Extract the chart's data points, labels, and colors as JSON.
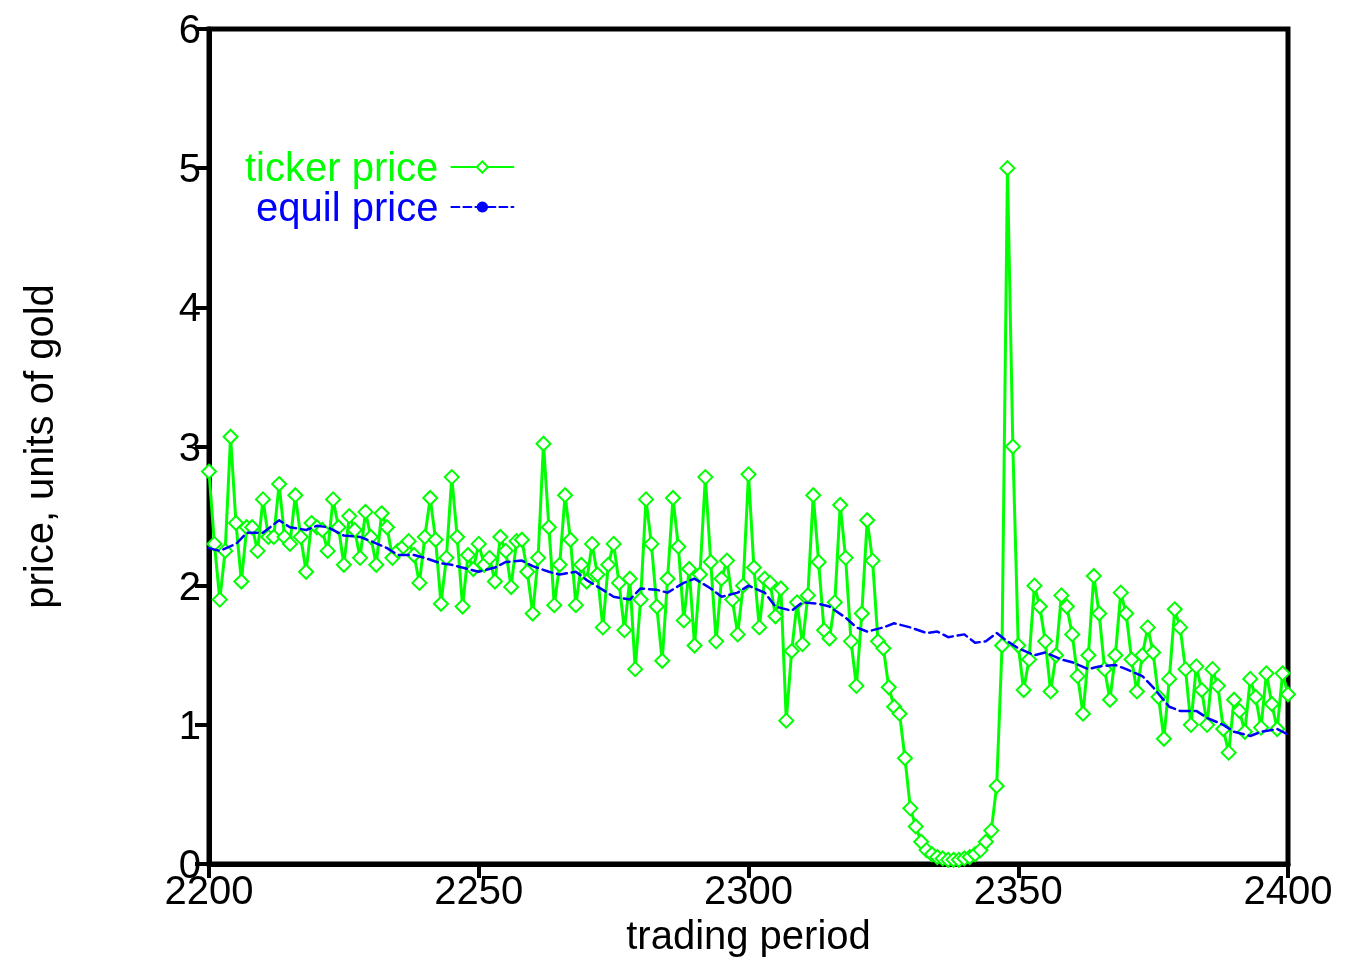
{
  "chart_data": {
    "type": "line",
    "xlabel": "trading period",
    "ylabel": "price, units of gold",
    "xlim": [
      2200,
      2400
    ],
    "xticks": [
      2200,
      2250,
      2300,
      2350,
      2400
    ],
    "ylim": [
      0,
      6
    ],
    "yticks": [
      0,
      1,
      2,
      3,
      4,
      5,
      6
    ],
    "grid": false,
    "legend": "top left",
    "series": [
      {
        "name": "ticker price",
        "color": "#00ff00",
        "marker": "diamond",
        "line_style": "solid",
        "x": [
          2200,
          2201,
          2202,
          2203,
          2204,
          2205,
          2206,
          2207,
          2208,
          2209,
          2210,
          2211,
          2212,
          2213,
          2214,
          2215,
          2216,
          2217,
          2218,
          2219,
          2220,
          2221,
          2222,
          2223,
          2224,
          2225,
          2226,
          2227,
          2228,
          2229,
          2230,
          2231,
          2232,
          2233,
          2234,
          2235,
          2236,
          2237,
          2238,
          2239,
          2240,
          2241,
          2242,
          2243,
          2244,
          2245,
          2246,
          2247,
          2248,
          2249,
          2250,
          2251,
          2252,
          2253,
          2254,
          2255,
          2256,
          2257,
          2258,
          2259,
          2260,
          2261,
          2262,
          2263,
          2264,
          2265,
          2266,
          2267,
          2268,
          2269,
          2270,
          2271,
          2272,
          2273,
          2274,
          2275,
          2276,
          2277,
          2278,
          2279,
          2280,
          2281,
          2282,
          2283,
          2284,
          2285,
          2286,
          2287,
          2288,
          2289,
          2290,
          2291,
          2292,
          2293,
          2294,
          2295,
          2296,
          2297,
          2298,
          2299,
          2300,
          2301,
          2302,
          2303,
          2304,
          2305,
          2306,
          2307,
          2308,
          2309,
          2310,
          2311,
          2312,
          2313,
          2314,
          2315,
          2316,
          2317,
          2318,
          2319,
          2320,
          2321,
          2322,
          2323,
          2324,
          2325,
          2326,
          2327,
          2328,
          2329,
          2330,
          2331,
          2332,
          2333,
          2334,
          2335,
          2336,
          2337,
          2338,
          2339,
          2340,
          2341,
          2342,
          2343,
          2344,
          2345,
          2346,
          2347,
          2348,
          2349,
          2350,
          2351,
          2352,
          2353,
          2354,
          2355,
          2356,
          2357,
          2358,
          2359,
          2360,
          2361,
          2362,
          2363,
          2364,
          2365,
          2366,
          2367,
          2368,
          2369,
          2370,
          2371,
          2372,
          2373,
          2374,
          2375,
          2376,
          2377,
          2378,
          2379,
          2380,
          2381,
          2382,
          2383,
          2384,
          2385,
          2386,
          2387,
          2388,
          2389,
          2390,
          2391,
          2392,
          2393,
          2394,
          2395,
          2396,
          2397,
          2398,
          2399,
          2400
        ],
        "values": [
          2.82,
          2.3,
          1.9,
          2.25,
          3.07,
          2.45,
          2.03,
          2.42,
          2.42,
          2.25,
          2.62,
          2.35,
          2.35,
          2.73,
          2.35,
          2.3,
          2.65,
          2.35,
          2.1,
          2.45,
          2.42,
          2.4,
          2.25,
          2.62,
          2.42,
          2.15,
          2.5,
          2.4,
          2.2,
          2.53,
          2.35,
          2.15,
          2.52,
          2.42,
          2.2,
          2.25,
          2.28,
          2.32,
          2.22,
          2.02,
          2.35,
          2.63,
          2.33,
          1.87,
          2.2,
          2.78,
          2.35,
          1.85,
          2.22,
          2.12,
          2.3,
          2.15,
          2.2,
          2.03,
          2.35,
          2.25,
          1.99,
          2.32,
          2.33,
          2.1,
          1.8,
          2.2,
          3.02,
          2.42,
          1.86,
          2.15,
          2.65,
          2.33,
          1.86,
          2.15,
          2.03,
          2.3,
          2.08,
          1.7,
          2.15,
          2.3,
          2.02,
          1.68,
          2.05,
          1.4,
          1.9,
          2.62,
          2.3,
          1.85,
          1.46,
          2.05,
          2.63,
          2.28,
          1.75,
          2.12,
          1.57,
          2.08,
          2.78,
          2.17,
          1.6,
          2.05,
          2.18,
          1.9,
          1.65,
          2.0,
          2.8,
          2.13,
          1.7,
          2.05,
          2.02,
          1.78,
          1.98,
          1.03,
          1.53,
          1.88,
          1.58,
          1.93,
          2.65,
          2.17,
          1.68,
          1.62,
          1.88,
          2.58,
          2.2,
          1.6,
          1.28,
          1.8,
          2.47,
          2.18,
          1.6,
          1.55,
          1.27,
          1.13,
          1.08,
          0.76,
          0.4,
          0.27,
          0.16,
          0.1,
          0.07,
          0.05,
          0.04,
          0.03,
          0.03,
          0.03,
          0.04,
          0.05,
          0.07,
          0.1,
          0.16,
          0.24,
          0.56,
          1.57,
          5.0,
          3.0,
          1.57,
          1.25,
          1.47,
          2.0,
          1.85,
          1.6,
          1.24,
          1.5,
          1.93,
          1.85,
          1.65,
          1.35,
          1.08,
          1.5,
          2.07,
          1.8,
          1.4,
          1.18,
          1.5,
          1.95,
          1.8,
          1.47,
          1.24,
          1.5,
          1.7,
          1.52,
          1.2,
          0.9,
          1.33,
          1.83,
          1.7,
          1.4,
          1.0,
          1.42,
          1.25,
          1.0,
          1.4,
          1.28,
          0.97,
          0.8,
          1.18,
          1.1,
          0.95,
          1.33,
          1.2,
          0.98,
          1.37,
          1.15,
          0.97,
          1.37,
          1.22
        ]
      },
      {
        "name": "equil price",
        "color": "#0000ff",
        "marker": "none",
        "line_style": "dashed",
        "x": [
          2200,
          2202,
          2205,
          2207,
          2210,
          2213,
          2215,
          2218,
          2220,
          2222,
          2225,
          2228,
          2230,
          2233,
          2235,
          2238,
          2240,
          2243,
          2245,
          2248,
          2250,
          2253,
          2255,
          2258,
          2260,
          2263,
          2265,
          2268,
          2270,
          2273,
          2275,
          2278,
          2280,
          2283,
          2285,
          2288,
          2290,
          2293,
          2295,
          2298,
          2300,
          2303,
          2305,
          2308,
          2310,
          2313,
          2315,
          2318,
          2320,
          2322,
          2325,
          2327,
          2330,
          2333,
          2335,
          2337,
          2340,
          2342,
          2344,
          2346,
          2348,
          2350,
          2353,
          2355,
          2358,
          2360,
          2363,
          2365,
          2368,
          2370,
          2373,
          2375,
          2378,
          2380,
          2383,
          2385,
          2388,
          2390,
          2393,
          2395,
          2398,
          2400
        ],
        "values": [
          2.27,
          2.25,
          2.3,
          2.38,
          2.38,
          2.47,
          2.42,
          2.4,
          2.43,
          2.42,
          2.36,
          2.35,
          2.32,
          2.27,
          2.22,
          2.22,
          2.2,
          2.16,
          2.15,
          2.12,
          2.1,
          2.13,
          2.17,
          2.18,
          2.14,
          2.1,
          2.08,
          2.1,
          2.04,
          1.97,
          1.92,
          1.9,
          1.98,
          1.97,
          1.95,
          2.02,
          2.05,
          1.98,
          1.92,
          1.95,
          2.0,
          1.95,
          1.85,
          1.82,
          1.88,
          1.87,
          1.85,
          1.77,
          1.7,
          1.67,
          1.7,
          1.73,
          1.7,
          1.66,
          1.67,
          1.63,
          1.65,
          1.59,
          1.6,
          1.66,
          1.6,
          1.55,
          1.5,
          1.52,
          1.47,
          1.45,
          1.4,
          1.42,
          1.43,
          1.4,
          1.35,
          1.27,
          1.13,
          1.1,
          1.1,
          1.05,
          1.0,
          0.95,
          0.92,
          0.95,
          0.97,
          0.93
        ]
      }
    ]
  }
}
